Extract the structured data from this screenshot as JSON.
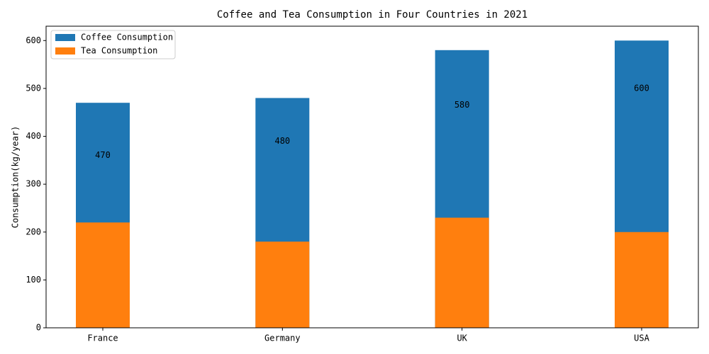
{
  "chart_data": {
    "type": "bar",
    "title": "Coffee and Tea Consumption in Four Countries in 2021",
    "y_label": "Consumption(kg/year)",
    "categories": [
      "France",
      "Germany",
      "UK",
      "USA"
    ],
    "series": [
      {
        "name": "Coffee Consumption",
        "color": "#1f77b4",
        "values": [
          470,
          480,
          580,
          600
        ]
      },
      {
        "name": "Tea Consumption",
        "color": "#ff7f0e",
        "values": [
          220,
          180,
          230,
          200
        ]
      }
    ],
    "ylim": [
      0,
      630
    ],
    "yticks": [
      0,
      100,
      200,
      300,
      400,
      500,
      600
    ],
    "legend": "upper left"
  }
}
